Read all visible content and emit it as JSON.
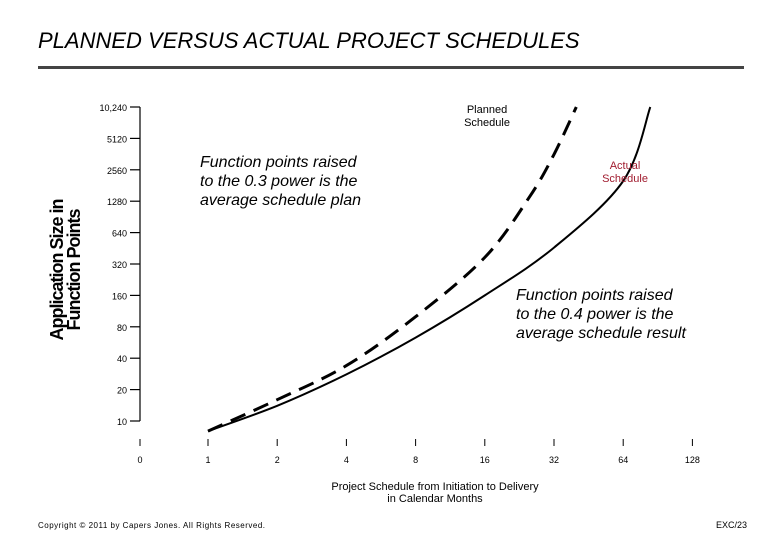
{
  "slide": {
    "title": "PLANNED VERSUS ACTUAL PROJECT SCHEDULES",
    "footer_left": "Copyright © 2011 by Capers Jones. All Rights Reserved.",
    "footer_right": "EXC/23"
  },
  "chart_data": {
    "type": "line",
    "title": "",
    "xlabel": "Project Schedule from Initiation to Delivery in Calendar Months",
    "xlabel_lines": [
      "Project Schedule from Initiation to Delivery",
      "in Calendar Months"
    ],
    "ylabel_lines": [
      "Application Size in",
      "Function Points"
    ],
    "x_scale": "log2",
    "y_scale": "log2",
    "x_ticks": [
      "0",
      "1",
      "2",
      "4",
      "8",
      "16",
      "32",
      "64",
      "128"
    ],
    "y_ticks": [
      "10",
      "20",
      "40",
      "80",
      "160",
      "320",
      "640",
      "1280",
      "2560",
      "5120",
      "10,240"
    ],
    "grid": false,
    "series": [
      {
        "name": "Planned Schedule",
        "label_lines": [
          "Planned",
          "Schedule"
        ],
        "style": "dashed",
        "color": "#000000",
        "x": [
          1,
          2,
          4,
          8,
          16,
          25,
          32,
          40
        ],
        "y": [
          8,
          16,
          34,
          100,
          370,
          1400,
          3600,
          10240
        ]
      },
      {
        "name": "Actual Schedule",
        "label_lines": [
          "Actual",
          "Schedule"
        ],
        "style": "solid",
        "color": "#000000",
        "label_color": "#a11c2f",
        "x": [
          1,
          2,
          4,
          8,
          16,
          32,
          64,
          84
        ],
        "y": [
          8,
          14,
          28,
          63,
          160,
          460,
          2000,
          10240
        ]
      }
    ],
    "annotations": [
      {
        "lines": [
          "Function points raised",
          "to the 0.3 power is the",
          "average schedule plan"
        ]
      },
      {
        "lines": [
          "Function points raised",
          "to the 0.4 power is the",
          "average schedule result"
        ]
      }
    ]
  }
}
